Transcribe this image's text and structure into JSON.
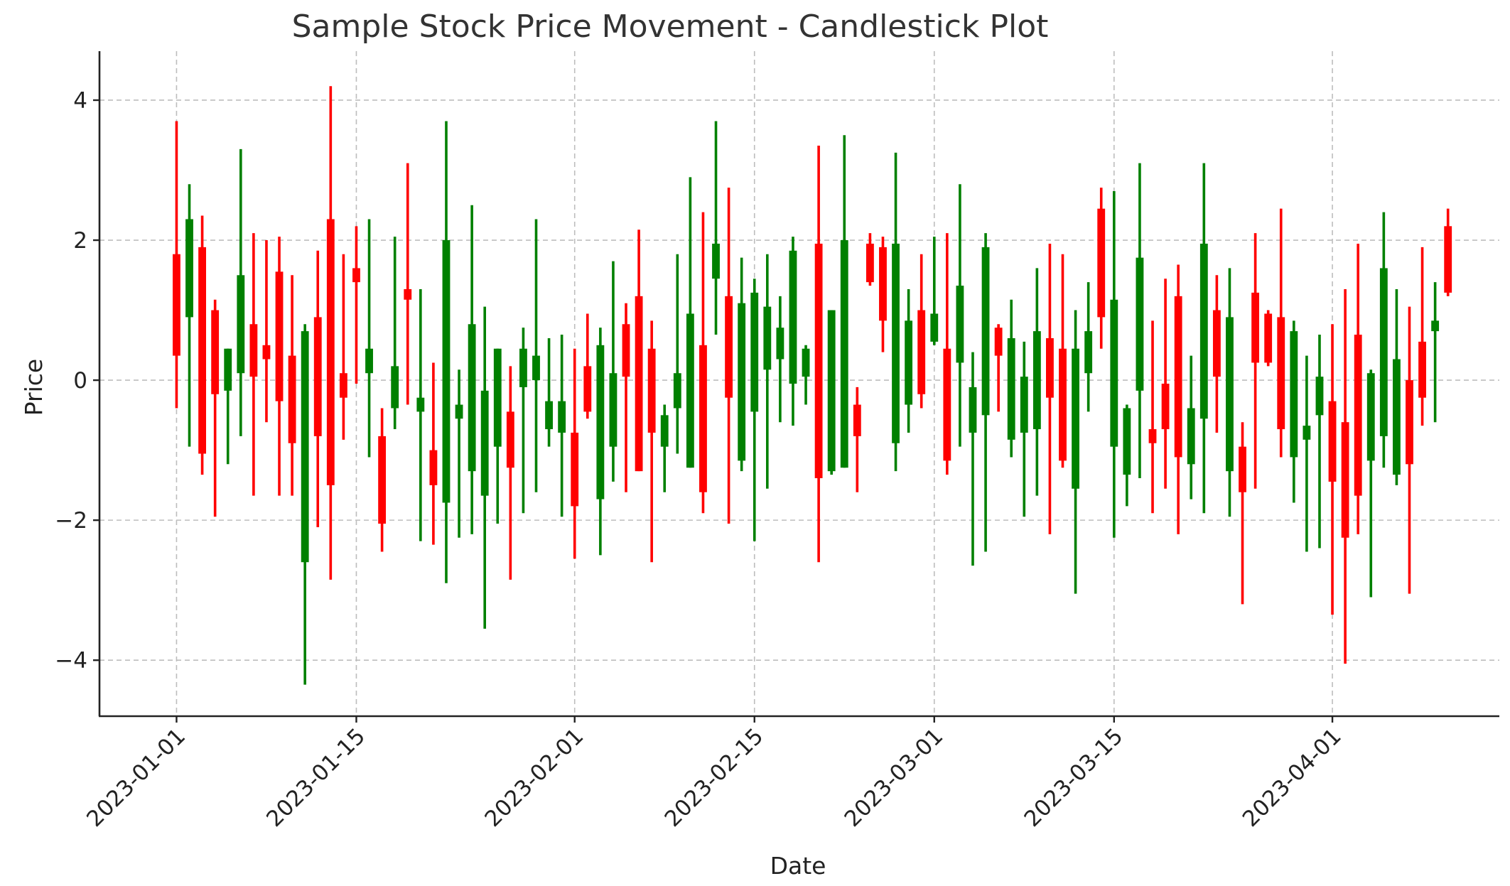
{
  "chart_data": {
    "type": "candlestick",
    "title": "Sample Stock Price Movement - Candlestick Plot",
    "xlabel": "Date",
    "ylabel": "Price",
    "x_start": "2023-01-01",
    "ylim": [
      -4.8,
      4.7
    ],
    "yticks": [
      -4,
      -2,
      0,
      2,
      4
    ],
    "ytick_labels": [
      "−4",
      "−2",
      "0",
      "2",
      "4"
    ],
    "xticks": [
      "2023-01-01",
      "2023-01-15",
      "2023-02-01",
      "2023-02-15",
      "2023-03-01",
      "2023-03-15",
      "2023-04-01"
    ],
    "xlim": [
      "2022-12-26",
      "2023-04-14"
    ],
    "grid": true,
    "colors": {
      "up": "#008000",
      "down": "#ff0000"
    },
    "candles": [
      {
        "date": "2023-01-01",
        "open": 1.8,
        "high": 3.7,
        "low": -0.4,
        "close": 0.35
      },
      {
        "date": "2023-01-02",
        "open": 0.9,
        "high": 2.8,
        "low": -0.95,
        "close": 2.3
      },
      {
        "date": "2023-01-03",
        "open": 1.9,
        "high": 2.35,
        "low": -1.35,
        "close": -1.05
      },
      {
        "date": "2023-01-04",
        "open": 1.0,
        "high": 1.15,
        "low": -1.95,
        "close": -0.2
      },
      {
        "date": "2023-01-05",
        "open": -0.15,
        "high": 0.45,
        "low": -1.2,
        "close": 0.45
      },
      {
        "date": "2023-01-06",
        "open": 0.1,
        "high": 3.3,
        "low": -0.8,
        "close": 1.5
      },
      {
        "date": "2023-01-07",
        "open": 0.8,
        "high": 2.1,
        "low": -1.65,
        "close": 0.05
      },
      {
        "date": "2023-01-08",
        "open": 0.5,
        "high": 2.0,
        "low": -0.6,
        "close": 0.3
      },
      {
        "date": "2023-01-09",
        "open": 1.55,
        "high": 2.05,
        "low": -1.65,
        "close": -0.3
      },
      {
        "date": "2023-01-10",
        "open": 0.35,
        "high": 1.5,
        "low": -1.65,
        "close": -0.9
      },
      {
        "date": "2023-01-11",
        "open": -2.6,
        "high": 0.8,
        "low": -4.35,
        "close": 0.7
      },
      {
        "date": "2023-01-12",
        "open": 0.9,
        "high": 1.85,
        "low": -2.1,
        "close": -0.8
      },
      {
        "date": "2023-01-13",
        "open": 2.3,
        "high": 4.2,
        "low": -2.85,
        "close": -1.5
      },
      {
        "date": "2023-01-14",
        "open": 0.1,
        "high": 1.8,
        "low": -0.85,
        "close": -0.25
      },
      {
        "date": "2023-01-15",
        "open": 1.6,
        "high": 2.2,
        "low": -0.05,
        "close": 1.4
      },
      {
        "date": "2023-01-16",
        "open": 0.1,
        "high": 2.3,
        "low": -1.1,
        "close": 0.45
      },
      {
        "date": "2023-01-17",
        "open": -0.8,
        "high": -0.4,
        "low": -2.45,
        "close": -2.05
      },
      {
        "date": "2023-01-18",
        "open": -0.4,
        "high": 2.05,
        "low": -0.7,
        "close": 0.2
      },
      {
        "date": "2023-01-19",
        "open": 1.3,
        "high": 3.1,
        "low": -0.35,
        "close": 1.15
      },
      {
        "date": "2023-01-20",
        "open": -0.45,
        "high": 1.3,
        "low": -2.3,
        "close": -0.25
      },
      {
        "date": "2023-01-21",
        "open": -1.0,
        "high": 0.25,
        "low": -2.35,
        "close": -1.5
      },
      {
        "date": "2023-01-22",
        "open": -1.75,
        "high": 3.7,
        "low": -2.9,
        "close": 2.0
      },
      {
        "date": "2023-01-23",
        "open": -0.55,
        "high": 0.15,
        "low": -2.25,
        "close": -0.35
      },
      {
        "date": "2023-01-24",
        "open": -1.3,
        "high": 2.5,
        "low": -2.2,
        "close": 0.8
      },
      {
        "date": "2023-01-25",
        "open": -1.65,
        "high": 1.05,
        "low": -3.55,
        "close": -0.15
      },
      {
        "date": "2023-01-26",
        "open": -0.95,
        "high": 0.45,
        "low": -2.05,
        "close": 0.45
      },
      {
        "date": "2023-01-27",
        "open": -0.45,
        "high": 0.2,
        "low": -2.85,
        "close": -1.25
      },
      {
        "date": "2023-01-28",
        "open": -0.1,
        "high": 0.75,
        "low": -1.9,
        "close": 0.45
      },
      {
        "date": "2023-01-29",
        "open": 0.0,
        "high": 2.3,
        "low": -1.6,
        "close": 0.35
      },
      {
        "date": "2023-01-30",
        "open": -0.7,
        "high": 0.6,
        "low": -0.95,
        "close": -0.3
      },
      {
        "date": "2023-01-31",
        "open": -0.75,
        "high": 0.65,
        "low": -1.95,
        "close": -0.3
      },
      {
        "date": "2023-02-01",
        "open": -0.75,
        "high": 0.45,
        "low": -2.55,
        "close": -1.8
      },
      {
        "date": "2023-02-02",
        "open": 0.2,
        "high": 0.95,
        "low": -0.55,
        "close": -0.45
      },
      {
        "date": "2023-02-03",
        "open": -1.7,
        "high": 0.75,
        "low": -2.5,
        "close": 0.5
      },
      {
        "date": "2023-02-04",
        "open": -0.95,
        "high": 1.7,
        "low": -1.45,
        "close": 0.1
      },
      {
        "date": "2023-02-05",
        "open": 0.8,
        "high": 1.1,
        "low": -1.6,
        "close": 0.05
      },
      {
        "date": "2023-02-06",
        "open": 1.2,
        "high": 2.15,
        "low": -1.3,
        "close": -1.3
      },
      {
        "date": "2023-02-07",
        "open": 0.45,
        "high": 0.85,
        "low": -2.6,
        "close": -0.75
      },
      {
        "date": "2023-02-08",
        "open": -0.95,
        "high": -0.35,
        "low": -1.6,
        "close": -0.5
      },
      {
        "date": "2023-02-09",
        "open": -0.4,
        "high": 1.8,
        "low": -1.05,
        "close": 0.1
      },
      {
        "date": "2023-02-10",
        "open": -1.25,
        "high": 2.9,
        "low": -1.25,
        "close": 0.95
      },
      {
        "date": "2023-02-11",
        "open": 0.5,
        "high": 2.4,
        "low": -1.9,
        "close": -1.6
      },
      {
        "date": "2023-02-12",
        "open": 1.45,
        "high": 3.7,
        "low": 0.65,
        "close": 1.95
      },
      {
        "date": "2023-02-13",
        "open": 1.2,
        "high": 2.75,
        "low": -2.05,
        "close": -0.25
      },
      {
        "date": "2023-02-14",
        "open": -1.15,
        "high": 1.75,
        "low": -1.3,
        "close": 1.1
      },
      {
        "date": "2023-02-15",
        "open": -0.45,
        "high": 1.45,
        "low": -2.3,
        "close": 1.25
      },
      {
        "date": "2023-02-16",
        "open": 0.15,
        "high": 1.8,
        "low": -1.55,
        "close": 1.05
      },
      {
        "date": "2023-02-17",
        "open": 0.3,
        "high": 1.2,
        "low": -0.6,
        "close": 0.75
      },
      {
        "date": "2023-02-18",
        "open": -0.05,
        "high": 2.05,
        "low": -0.65,
        "close": 1.85
      },
      {
        "date": "2023-02-19",
        "open": 0.05,
        "high": 0.5,
        "low": -0.35,
        "close": 0.45
      },
      {
        "date": "2023-02-20",
        "open": 1.95,
        "high": 3.35,
        "low": -2.6,
        "close": -1.4
      },
      {
        "date": "2023-02-21",
        "open": -1.3,
        "high": 1.0,
        "low": -1.35,
        "close": 1.0
      },
      {
        "date": "2023-02-22",
        "open": -1.25,
        "high": 3.5,
        "low": -1.25,
        "close": 2.0
      },
      {
        "date": "2023-02-23",
        "open": -0.35,
        "high": -0.1,
        "low": -1.6,
        "close": -0.8
      },
      {
        "date": "2023-02-24",
        "open": 1.95,
        "high": 2.1,
        "low": 1.35,
        "close": 1.4
      },
      {
        "date": "2023-02-25",
        "open": 1.9,
        "high": 2.05,
        "low": 0.4,
        "close": 0.85
      },
      {
        "date": "2023-02-26",
        "open": -0.9,
        "high": 3.25,
        "low": -1.3,
        "close": 1.95
      },
      {
        "date": "2023-02-27",
        "open": -0.35,
        "high": 1.3,
        "low": -0.75,
        "close": 0.85
      },
      {
        "date": "2023-02-28",
        "open": 1.0,
        "high": 1.8,
        "low": -0.4,
        "close": -0.2
      },
      {
        "date": "2023-03-01",
        "open": 0.55,
        "high": 2.05,
        "low": 0.5,
        "close": 0.95
      },
      {
        "date": "2023-03-02",
        "open": 0.45,
        "high": 2.1,
        "low": -1.35,
        "close": -1.15
      },
      {
        "date": "2023-03-03",
        "open": 0.25,
        "high": 2.8,
        "low": -0.95,
        "close": 1.35
      },
      {
        "date": "2023-03-04",
        "open": -0.75,
        "high": 0.4,
        "low": -2.65,
        "close": -0.1
      },
      {
        "date": "2023-03-05",
        "open": -0.5,
        "high": 2.1,
        "low": -2.45,
        "close": 1.9
      },
      {
        "date": "2023-03-06",
        "open": 0.75,
        "high": 0.8,
        "low": -0.45,
        "close": 0.35
      },
      {
        "date": "2023-03-07",
        "open": -0.85,
        "high": 1.15,
        "low": -1.1,
        "close": 0.6
      },
      {
        "date": "2023-03-08",
        "open": -0.75,
        "high": 0.55,
        "low": -1.95,
        "close": 0.05
      },
      {
        "date": "2023-03-09",
        "open": -0.7,
        "high": 1.6,
        "low": -1.65,
        "close": 0.7
      },
      {
        "date": "2023-03-10",
        "open": 0.6,
        "high": 1.95,
        "low": -2.2,
        "close": -0.25
      },
      {
        "date": "2023-03-11",
        "open": 0.45,
        "high": 1.8,
        "low": -1.25,
        "close": -1.15
      },
      {
        "date": "2023-03-12",
        "open": -1.55,
        "high": 1.0,
        "low": -3.05,
        "close": 0.45
      },
      {
        "date": "2023-03-13",
        "open": 0.1,
        "high": 1.4,
        "low": -0.45,
        "close": 0.7
      },
      {
        "date": "2023-03-14",
        "open": 2.45,
        "high": 2.75,
        "low": 0.45,
        "close": 0.9
      },
      {
        "date": "2023-03-15",
        "open": -0.95,
        "high": 2.7,
        "low": -2.25,
        "close": 1.15
      },
      {
        "date": "2023-03-16",
        "open": -1.35,
        "high": -0.35,
        "low": -1.8,
        "close": -0.4
      },
      {
        "date": "2023-03-17",
        "open": -0.15,
        "high": 3.1,
        "low": -1.4,
        "close": 1.75
      },
      {
        "date": "2023-03-18",
        "open": -0.7,
        "high": 0.85,
        "low": -1.9,
        "close": -0.9
      },
      {
        "date": "2023-03-19",
        "open": -0.05,
        "high": 1.45,
        "low": -1.55,
        "close": -0.7
      },
      {
        "date": "2023-03-20",
        "open": 1.2,
        "high": 1.65,
        "low": -2.2,
        "close": -1.1
      },
      {
        "date": "2023-03-21",
        "open": -1.2,
        "high": 0.35,
        "low": -1.7,
        "close": -0.4
      },
      {
        "date": "2023-03-22",
        "open": -0.55,
        "high": 3.1,
        "low": -1.9,
        "close": 1.95
      },
      {
        "date": "2023-03-23",
        "open": 1.0,
        "high": 1.5,
        "low": -0.75,
        "close": 0.05
      },
      {
        "date": "2023-03-24",
        "open": -1.3,
        "high": 1.6,
        "low": -1.95,
        "close": 0.9
      },
      {
        "date": "2023-03-25",
        "open": -0.95,
        "high": -0.6,
        "low": -3.2,
        "close": -1.6
      },
      {
        "date": "2023-03-26",
        "open": 1.25,
        "high": 2.1,
        "low": -1.55,
        "close": 0.25
      },
      {
        "date": "2023-03-27",
        "open": 0.95,
        "high": 1.0,
        "low": 0.2,
        "close": 0.25
      },
      {
        "date": "2023-03-28",
        "open": 0.9,
        "high": 2.45,
        "low": -1.1,
        "close": -0.7
      },
      {
        "date": "2023-03-29",
        "open": -1.1,
        "high": 0.85,
        "low": -1.75,
        "close": 0.7
      },
      {
        "date": "2023-03-30",
        "open": -0.85,
        "high": 0.35,
        "low": -2.45,
        "close": -0.65
      },
      {
        "date": "2023-03-31",
        "open": -0.5,
        "high": 0.65,
        "low": -2.4,
        "close": 0.05
      },
      {
        "date": "2023-04-01",
        "open": -0.3,
        "high": 0.8,
        "low": -3.35,
        "close": -1.45
      },
      {
        "date": "2023-04-02",
        "open": -0.6,
        "high": 1.3,
        "low": -4.05,
        "close": -2.25
      },
      {
        "date": "2023-04-03",
        "open": 0.65,
        "high": 1.95,
        "low": -2.2,
        "close": -1.65
      },
      {
        "date": "2023-04-04",
        "open": -1.15,
        "high": 0.15,
        "low": -3.1,
        "close": 0.1
      },
      {
        "date": "2023-04-05",
        "open": -0.8,
        "high": 2.4,
        "low": -1.25,
        "close": 1.6
      },
      {
        "date": "2023-04-06",
        "open": -1.35,
        "high": 1.3,
        "low": -1.5,
        "close": 0.3
      },
      {
        "date": "2023-04-07",
        "open": 0.0,
        "high": 1.05,
        "low": -3.05,
        "close": -1.2
      },
      {
        "date": "2023-04-08",
        "open": 0.55,
        "high": 1.9,
        "low": -0.65,
        "close": -0.25
      },
      {
        "date": "2023-04-09",
        "open": 0.7,
        "high": 1.4,
        "low": -0.6,
        "close": 0.85
      },
      {
        "date": "2023-04-10",
        "open": 2.2,
        "high": 2.45,
        "low": 1.2,
        "close": 1.25
      }
    ]
  }
}
